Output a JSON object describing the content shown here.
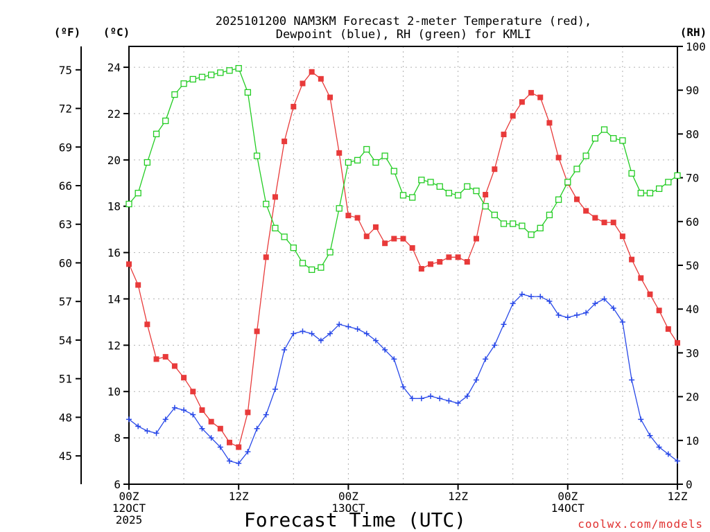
{
  "title_line1": "2025101200 NAM3KM Forecast 2-meter Temperature (red),",
  "title_line2": "Dewpoint (blue), RH (green) for KMLI",
  "units": {
    "fahrenheit": "(ºF)",
    "celsius": "(ºC)",
    "rh": "(RH)"
  },
  "credit": "coolwx.com/models",
  "colors": {
    "temperature": "#e83a3a",
    "dewpoint": "#2848e8",
    "rh": "#22cc22"
  },
  "chart_data": {
    "type": "line",
    "title": "2025101200 NAM3KM Forecast 2-meter Temperature (red), Dewpoint (blue), RH (green) for KMLI",
    "xlabel": "Forecast Time (UTC)",
    "ylabel_left": "(ºC)",
    "ylabel_far_left": "(ºF)",
    "ylabel_right": "(RH)",
    "xlim": [
      0,
      60
    ],
    "ylim": [
      6,
      24.9
    ],
    "y2lim": [
      0,
      100
    ],
    "grid": true,
    "x_ticks": [
      {
        "x": 0,
        "lines": [
          "00Z",
          "12OCT",
          "2025"
        ]
      },
      {
        "x": 12,
        "lines": [
          "12Z"
        ]
      },
      {
        "x": 24,
        "lines": [
          "00Z",
          "13OCT"
        ]
      },
      {
        "x": 36,
        "lines": [
          "12Z"
        ]
      },
      {
        "x": 48,
        "lines": [
          "00Z",
          "14OCT"
        ]
      },
      {
        "x": 60,
        "lines": [
          "12Z"
        ]
      }
    ],
    "celsius_ticks": [
      6,
      8,
      10,
      12,
      14,
      16,
      18,
      20,
      22,
      24
    ],
    "fahrenheit_ticks": [
      45,
      48,
      51,
      54,
      57,
      60,
      63,
      66,
      69,
      72,
      75
    ],
    "rh_ticks": [
      0,
      10,
      20,
      30,
      40,
      50,
      60,
      70,
      80,
      90,
      100
    ],
    "series": [
      {
        "name": "Temperature",
        "axis": "left",
        "marker": "filled-square",
        "x": [
          0,
          1,
          2,
          3,
          4,
          5,
          6,
          7,
          8,
          9,
          10,
          11,
          12,
          13,
          14,
          15,
          16,
          17,
          18,
          19,
          20,
          21,
          22,
          23,
          24,
          25,
          26,
          27,
          28,
          29,
          30,
          31,
          32,
          33,
          34,
          35,
          36,
          37,
          38,
          39,
          40,
          41,
          42,
          43,
          44,
          45,
          46,
          47,
          48,
          49,
          50,
          51,
          52,
          53,
          54,
          55,
          56,
          57,
          58,
          59,
          60
        ],
        "values": [
          15.5,
          14.6,
          12.9,
          11.4,
          11.5,
          11.1,
          10.6,
          10.0,
          9.2,
          8.7,
          8.4,
          7.8,
          7.6,
          9.1,
          12.6,
          15.8,
          18.4,
          20.8,
          22.3,
          23.3,
          23.8,
          23.5,
          22.7,
          20.3,
          17.6,
          17.5,
          16.7,
          17.1,
          16.4,
          16.6,
          16.6,
          16.2,
          15.3,
          15.5,
          15.6,
          15.8,
          15.8,
          15.6,
          16.6,
          18.5,
          19.6,
          21.1,
          21.9,
          22.5,
          22.9,
          22.7,
          21.6,
          20.1,
          19.0,
          18.3,
          17.8,
          17.5,
          17.3,
          17.3,
          16.7,
          15.7,
          14.9,
          14.2,
          13.5,
          12.7,
          12.1
        ]
      },
      {
        "name": "Dewpoint",
        "axis": "left",
        "marker": "plus",
        "x": [
          0,
          1,
          2,
          3,
          4,
          5,
          6,
          7,
          8,
          9,
          10,
          11,
          12,
          13,
          14,
          15,
          16,
          17,
          18,
          19,
          20,
          21,
          22,
          23,
          24,
          25,
          26,
          27,
          28,
          29,
          30,
          31,
          32,
          33,
          34,
          35,
          36,
          37,
          38,
          39,
          40,
          41,
          42,
          43,
          44,
          45,
          46,
          47,
          48,
          49,
          50,
          51,
          52,
          53,
          54,
          55,
          56,
          57,
          58,
          59,
          60
        ],
        "values": [
          8.8,
          8.5,
          8.3,
          8.2,
          8.8,
          9.3,
          9.2,
          9.0,
          8.4,
          8.0,
          7.6,
          7.0,
          6.9,
          7.4,
          8.4,
          9.0,
          10.1,
          11.8,
          12.5,
          12.6,
          12.5,
          12.2,
          12.5,
          12.9,
          12.8,
          12.7,
          12.5,
          12.2,
          11.8,
          11.4,
          10.2,
          9.7,
          9.7,
          9.8,
          9.7,
          9.6,
          9.5,
          9.8,
          10.5,
          11.4,
          12.0,
          12.9,
          13.8,
          14.2,
          14.1,
          14.1,
          13.9,
          13.3,
          13.2,
          13.3,
          13.4,
          13.8,
          14.0,
          13.6,
          13.0,
          10.5,
          8.8,
          8.1,
          7.6,
          7.3,
          7.0
        ]
      },
      {
        "name": "RH",
        "axis": "right",
        "marker": "open-square",
        "x": [
          0,
          1,
          2,
          3,
          4,
          5,
          6,
          7,
          8,
          9,
          10,
          11,
          12,
          13,
          14,
          15,
          16,
          17,
          18,
          19,
          20,
          21,
          22,
          23,
          24,
          25,
          26,
          27,
          28,
          29,
          30,
          31,
          32,
          33,
          34,
          35,
          36,
          37,
          38,
          39,
          40,
          41,
          42,
          43,
          44,
          45,
          46,
          47,
          48,
          49,
          50,
          51,
          52,
          53,
          54,
          55,
          56,
          57,
          58,
          59,
          60
        ],
        "values": [
          64,
          66.5,
          73.5,
          80,
          83,
          89,
          91.5,
          92.5,
          93,
          93.5,
          94,
          94.5,
          95,
          89.5,
          75,
          64,
          58.5,
          56.5,
          54,
          50.5,
          49,
          49.5,
          53,
          63,
          73.5,
          74,
          76.5,
          73.5,
          75,
          71.5,
          66,
          65.5,
          69.5,
          69,
          68,
          66.5,
          66,
          68,
          67,
          63.5,
          61.5,
          59.5,
          59.5,
          59,
          57,
          58.5,
          61.5,
          65,
          69,
          72,
          75,
          79,
          81,
          79,
          78.5,
          71,
          66.5,
          66.5,
          67.5,
          69,
          70.5
        ]
      }
    ]
  }
}
